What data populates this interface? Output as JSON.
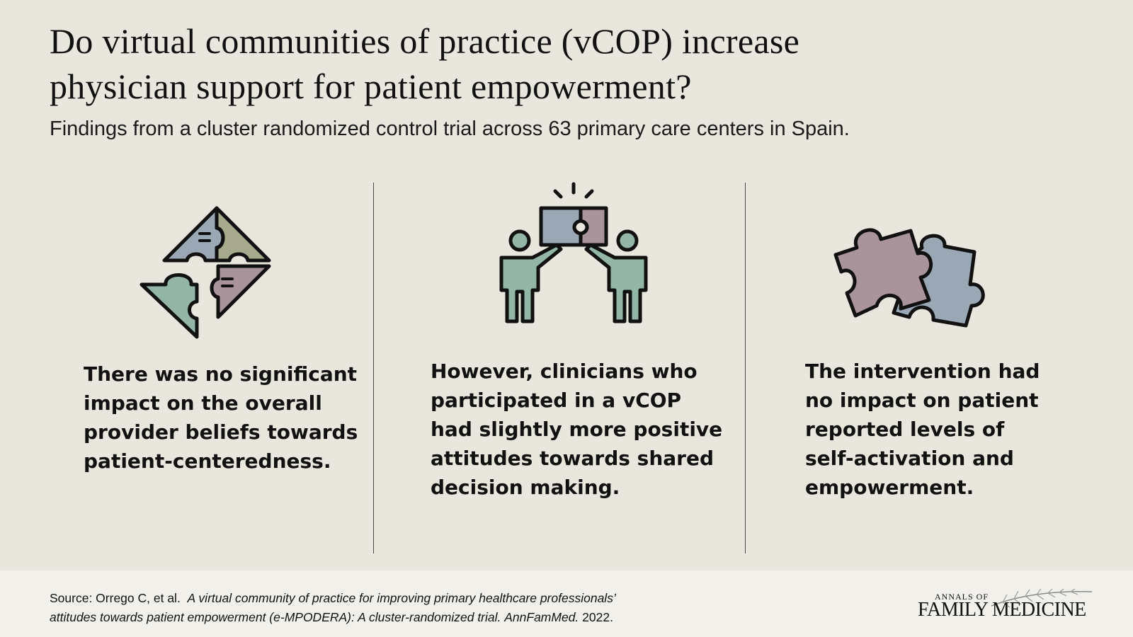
{
  "title": {
    "line1": "Do virtual communities of practice (vCOP) increase",
    "line2": "physician support for patient empowerment?"
  },
  "subtitle": "Findings from a cluster randomized control trial across 63 primary care centers in Spain.",
  "findings": [
    {
      "icon": "puzzle-diamond-icon",
      "lines": [
        "There was no significant",
        "impact on the overall",
        "provider beliefs towards",
        "patient-centeredness."
      ]
    },
    {
      "icon": "people-joining-puzzle-icon",
      "lines": [
        "However, clinicians who",
        "participated in a vCOP",
        "had slightly more positive",
        "attitudes towards shared",
        "decision making."
      ]
    },
    {
      "icon": "two-puzzle-pieces-icon",
      "lines": [
        "The intervention had",
        "no impact on patient",
        "reported levels of",
        "self-activation and",
        "empowerment."
      ]
    }
  ],
  "source": {
    "prefix": "Source: Orrego C, et al.",
    "line1_italic": "A virtual community of practice for improving primary healthcare professionals’",
    "line2_italic": "attitudes towards patient empowerment (e-MPODERA): A cluster-randomized trial.",
    "journal": "AnnFamMed.",
    "year": "2022."
  },
  "logo": {
    "top": "ANNALS OF",
    "bottom": "FAMILY MEDICINE",
    "icon": "fern-leaf-icon"
  },
  "colors": {
    "background": "#e9e6dd",
    "footer": "#f2f0ea",
    "blue_gray": "#9aa7b4",
    "mauve": "#a8949a",
    "olive": "#a6a98c",
    "sage": "#93b6a7"
  }
}
